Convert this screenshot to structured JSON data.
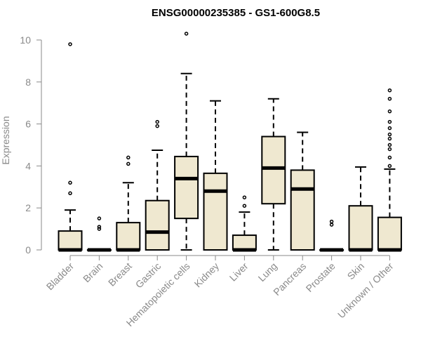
{
  "chart_data": {
    "type": "boxplot",
    "title": "ENSG00000235385 - GS1-600G8.5",
    "xlabel": "",
    "ylabel": "Expression",
    "ylim": [
      0,
      10.4
    ],
    "yticks": [
      0,
      2,
      4,
      6,
      8,
      10
    ],
    "box_color": "#efe8d0",
    "categories": [
      "Bladder",
      "Brain",
      "Breast",
      "Gastric",
      "Hematopoietic cells",
      "Kidney",
      "Liver",
      "Lung",
      "Pancreas",
      "Prostate",
      "Skin",
      "Unknown / Other"
    ],
    "boxes": [
      {
        "min": 0,
        "q1": 0,
        "median": 0,
        "q3": 0.9,
        "max": 1.9,
        "outliers": [
          2.7,
          3.2,
          9.8
        ]
      },
      {
        "min": 0,
        "q1": 0,
        "median": 0,
        "q3": 0,
        "max": 0,
        "outliers": [
          1.0,
          1.1,
          1.5
        ]
      },
      {
        "min": 0,
        "q1": 0,
        "median": 0,
        "q3": 1.3,
        "max": 3.2,
        "outliers": [
          4.1,
          4.4
        ]
      },
      {
        "min": 0,
        "q1": 0,
        "median": 0.85,
        "q3": 2.35,
        "max": 4.75,
        "outliers": [
          5.9,
          6.1
        ]
      },
      {
        "min": 0,
        "q1": 1.5,
        "median": 3.4,
        "q3": 4.45,
        "max": 8.4,
        "outliers": [
          10.3
        ]
      },
      {
        "min": 0,
        "q1": 0,
        "median": 2.8,
        "q3": 3.65,
        "max": 7.1,
        "outliers": []
      },
      {
        "min": 0,
        "q1": 0,
        "median": 0,
        "q3": 0.7,
        "max": 1.8,
        "outliers": [
          2.1,
          2.5
        ]
      },
      {
        "min": 0,
        "q1": 2.2,
        "median": 3.9,
        "q3": 5.4,
        "max": 7.2,
        "outliers": []
      },
      {
        "min": 0,
        "q1": 0,
        "median": 2.9,
        "q3": 3.8,
        "max": 5.6,
        "outliers": []
      },
      {
        "min": 0,
        "q1": 0,
        "median": 0,
        "q3": 0,
        "max": 0,
        "outliers": [
          1.2,
          1.35
        ]
      },
      {
        "min": 0,
        "q1": 0,
        "median": 0,
        "q3": 2.1,
        "max": 3.95,
        "outliers": []
      },
      {
        "min": 0,
        "q1": 0,
        "median": 0,
        "q3": 1.55,
        "max": 3.85,
        "outliers": [
          4.0,
          4.4,
          4.8,
          5.0,
          5.3,
          5.5,
          5.8,
          6.1,
          6.6,
          7.2,
          7.6
        ]
      }
    ]
  }
}
